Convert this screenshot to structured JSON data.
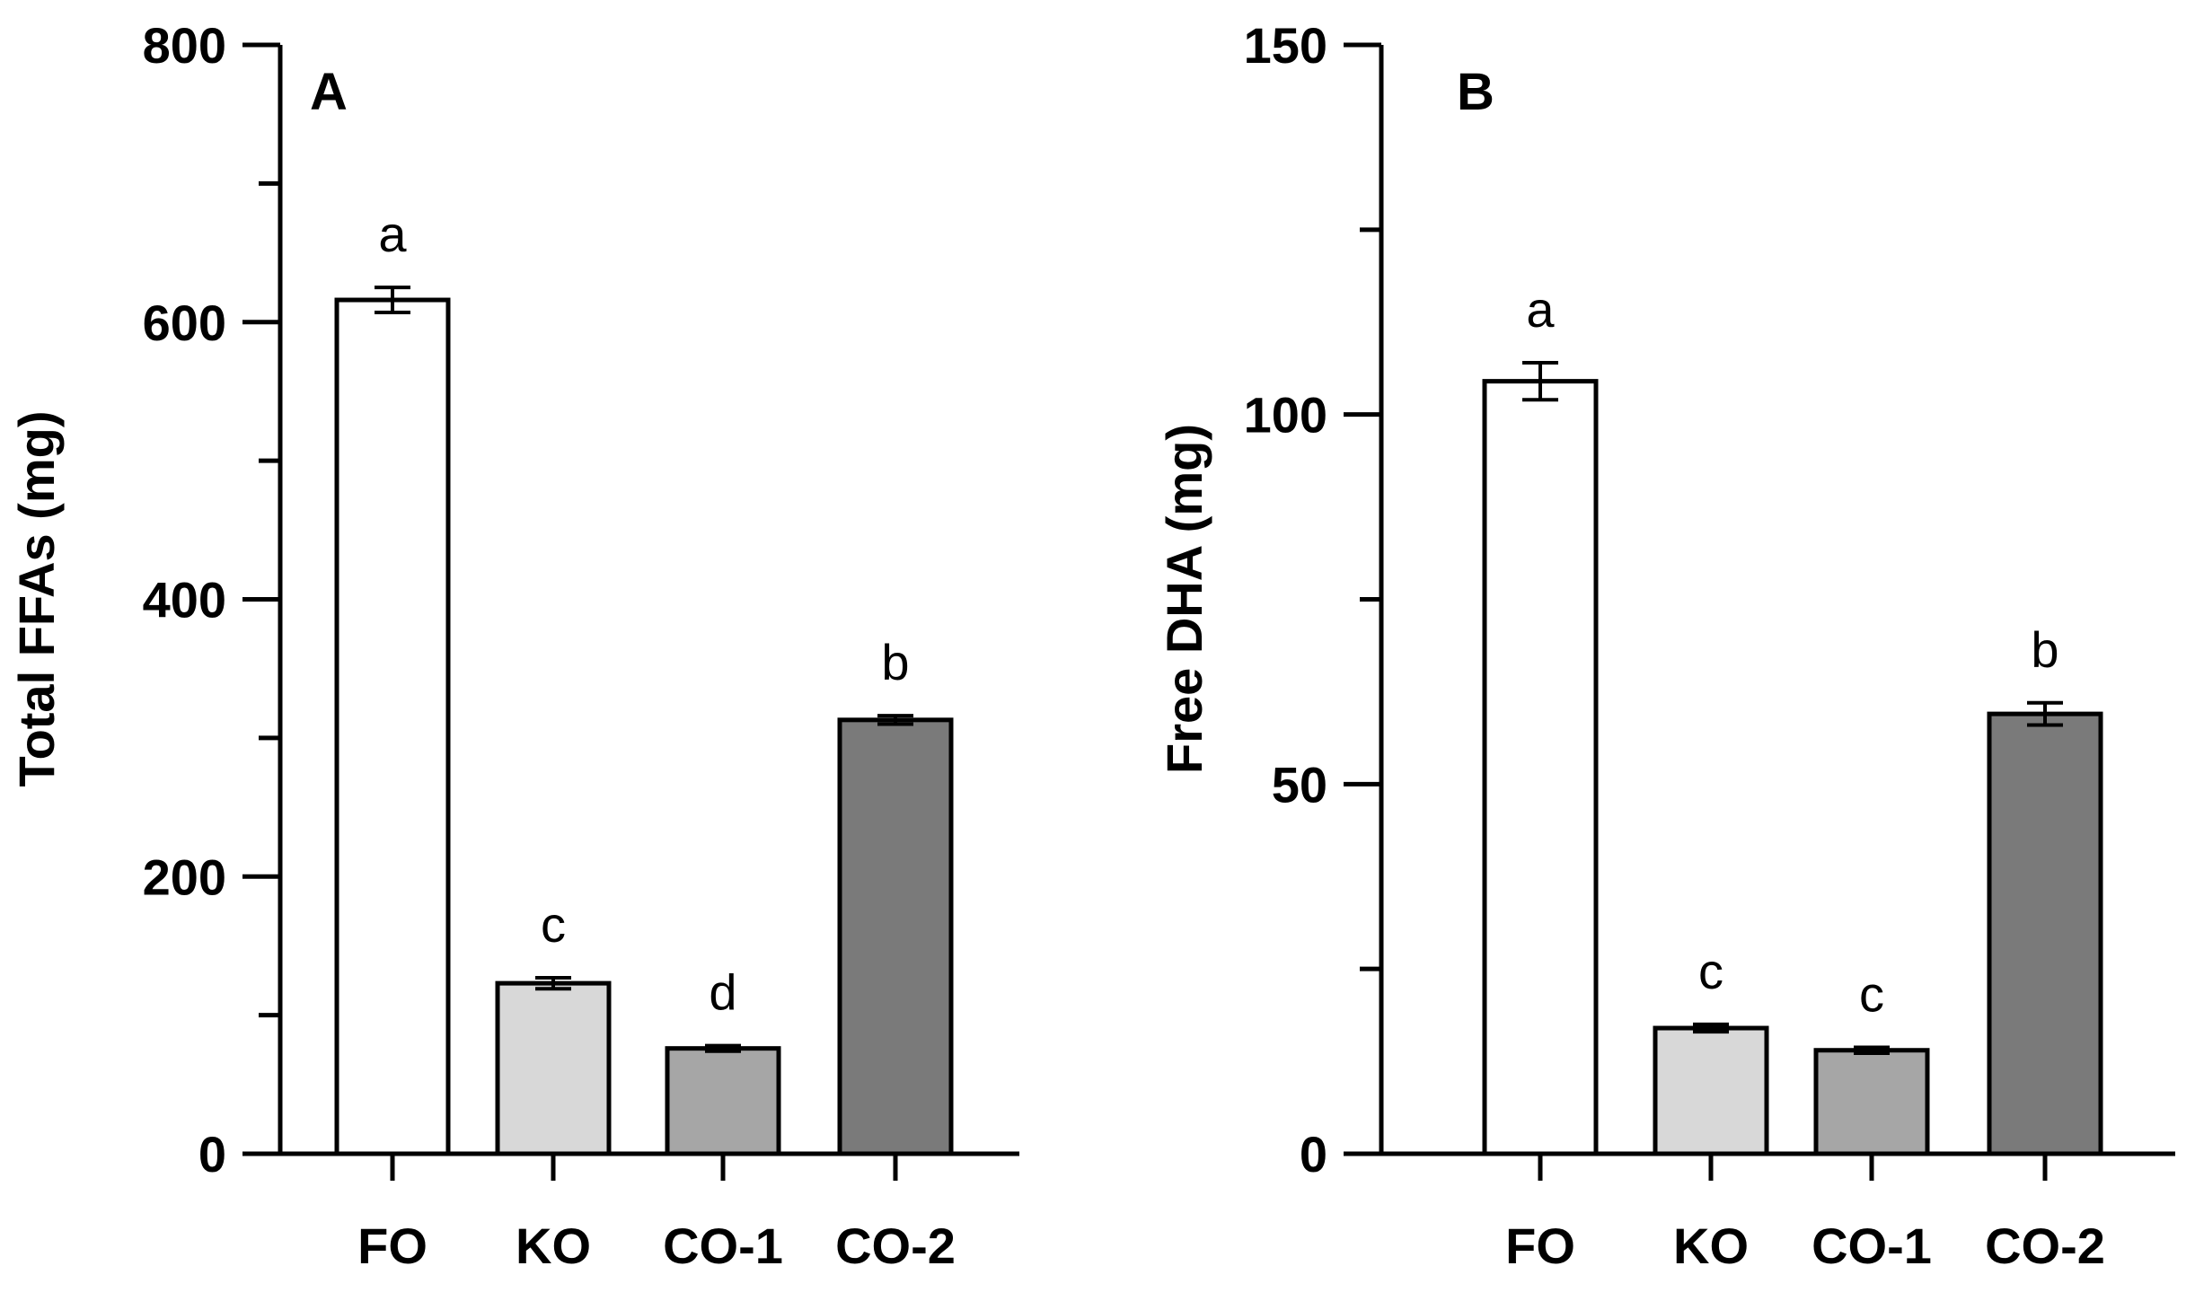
{
  "chart_data": [
    {
      "type": "bar",
      "panel": "A",
      "title": "",
      "xlabel": "",
      "ylabel": "Total FFAs (mg)",
      "ylim": [
        0,
        800
      ],
      "major_ticks": [
        0,
        200,
        400,
        600,
        800
      ],
      "minor_ticks": [
        100,
        300,
        500,
        700
      ],
      "categories": [
        "FO",
        "KO",
        "CO-1",
        "CO-2"
      ],
      "values": [
        616,
        123,
        76,
        313
      ],
      "errors": [
        9,
        4,
        2,
        3
      ],
      "significance": [
        "a",
        "c",
        "d",
        "b"
      ],
      "colors": [
        "#ffffff",
        "#d8d8d8",
        "#a6a6a6",
        "#7a7a7a"
      ]
    },
    {
      "type": "bar",
      "panel": "B",
      "title": "",
      "xlabel": "",
      "ylabel": "Free DHA (mg)",
      "ylim": [
        0,
        150
      ],
      "major_ticks": [
        0,
        50,
        100,
        150
      ],
      "minor_ticks": [
        25,
        75,
        125
      ],
      "categories": [
        "FO",
        "KO",
        "CO-1",
        "CO-2"
      ],
      "values": [
        104.5,
        17,
        14,
        59.5
      ],
      "errors": [
        2.5,
        0.5,
        0.4,
        1.5
      ],
      "significance": [
        "a",
        "c",
        "c",
        "b"
      ],
      "colors": [
        "#ffffff",
        "#d8d8d8",
        "#a6a6a6",
        "#7a7a7a"
      ]
    }
  ]
}
